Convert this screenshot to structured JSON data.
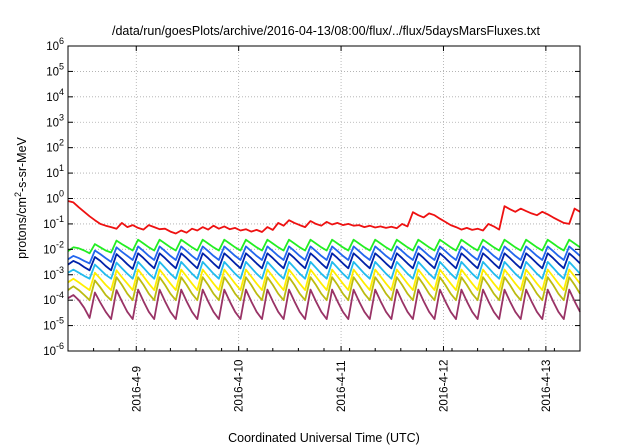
{
  "chart_data": {
    "type": "line",
    "title": "/data/run/goesPlots/archive/2016-04-13/08:00/flux/../flux/5daysMarsFluxes.txt",
    "xlabel": "Coordinated Universal Time (UTC)",
    "ylabel": "protons/cm²-s-sr-MeV",
    "y_scale": "log",
    "ylim": [
      1e-06,
      1000000.0
    ],
    "y_ticks": [
      {
        "value": 1e-06,
        "base": "10",
        "exp": "-6"
      },
      {
        "value": 1e-05,
        "base": "10",
        "exp": "-5"
      },
      {
        "value": 0.0001,
        "base": "10",
        "exp": "-4"
      },
      {
        "value": 0.001,
        "base": "10",
        "exp": "-3"
      },
      {
        "value": 0.01,
        "base": "10",
        "exp": "-2"
      },
      {
        "value": 0.1,
        "base": "10",
        "exp": "-1"
      },
      {
        "value": 1,
        "base": "10",
        "exp": "0"
      },
      {
        "value": 10,
        "base": "10",
        "exp": "1"
      },
      {
        "value": 100,
        "base": "10",
        "exp": "2"
      },
      {
        "value": 1000,
        "base": "10",
        "exp": "3"
      },
      {
        "value": 10000,
        "base": "10",
        "exp": "4"
      },
      {
        "value": 100000,
        "base": "10",
        "exp": "5"
      },
      {
        "value": 1000000,
        "base": "10",
        "exp": "6"
      }
    ],
    "xlim": [
      "2016-04-08T08:00",
      "2016-04-13T08:00"
    ],
    "x_ticks": [
      "2016-4-9",
      "2016-4-10",
      "2016-4-11",
      "2016-4-12",
      "2016-4-13"
    ],
    "grid": true,
    "series": [
      {
        "color": "#ee1111",
        "values": [
          0.8,
          0.7,
          0.45,
          0.3,
          0.2,
          0.14,
          0.1,
          0.085,
          0.075,
          0.065,
          0.11,
          0.075,
          0.09,
          0.07,
          0.06,
          0.09,
          0.075,
          0.062,
          0.065,
          0.05,
          0.042,
          0.055,
          0.045,
          0.065,
          0.055,
          0.075,
          0.06,
          0.085,
          0.065,
          0.08,
          0.062,
          0.07,
          0.055,
          0.062,
          0.05,
          0.058,
          0.048,
          0.075,
          0.058,
          0.11,
          0.085,
          0.14,
          0.11,
          0.09,
          0.075,
          0.13,
          0.1,
          0.085,
          0.12,
          0.095,
          0.11,
          0.09,
          0.1,
          0.085,
          0.09,
          0.075,
          0.085,
          0.072,
          0.08,
          0.07,
          0.078,
          0.068,
          0.1,
          0.08,
          0.29,
          0.22,
          0.18,
          0.26,
          0.22,
          0.16,
          0.12,
          0.09,
          0.075,
          0.06,
          0.07,
          0.058,
          0.065,
          0.055,
          0.1,
          0.08,
          0.06,
          0.5,
          0.38,
          0.3,
          0.4,
          0.32,
          0.26,
          0.22,
          0.3,
          0.24,
          0.18,
          0.14,
          0.11,
          0.1,
          0.4,
          0.3
        ]
      },
      {
        "color": "#22ee22",
        "values": [
          0.0085,
          0.012,
          0.011,
          0.009,
          0.007,
          0.016,
          0.012,
          0.009,
          0.0075,
          0.022,
          0.016,
          0.012,
          0.009,
          0.024,
          0.017,
          0.012,
          0.009,
          0.024,
          0.017,
          0.012,
          0.009,
          0.024,
          0.017,
          0.012,
          0.009,
          0.024,
          0.017,
          0.012,
          0.009,
          0.024,
          0.017,
          0.012,
          0.009,
          0.024,
          0.017,
          0.012,
          0.009,
          0.024,
          0.017,
          0.012,
          0.009,
          0.024,
          0.017,
          0.012,
          0.009,
          0.024,
          0.017,
          0.012,
          0.009,
          0.024,
          0.017,
          0.012,
          0.009,
          0.024,
          0.017,
          0.012,
          0.009,
          0.024,
          0.017,
          0.012,
          0.009,
          0.024,
          0.017,
          0.012,
          0.009,
          0.024,
          0.017,
          0.012,
          0.009,
          0.024,
          0.017,
          0.012,
          0.009,
          0.024,
          0.017,
          0.012,
          0.009,
          0.024,
          0.017,
          0.012,
          0.009,
          0.024,
          0.017,
          0.012,
          0.009,
          0.024,
          0.017,
          0.012,
          0.009,
          0.024,
          0.017,
          0.012,
          0.009,
          0.024,
          0.017,
          0.012
        ]
      },
      {
        "color": "#2266ee",
        "values": [
          0.004,
          0.0055,
          0.0045,
          0.0035,
          0.0028,
          0.009,
          0.0065,
          0.0045,
          0.0032,
          0.012,
          0.008,
          0.0055,
          0.0038,
          0.013,
          0.0085,
          0.0055,
          0.0038,
          0.013,
          0.0085,
          0.0055,
          0.0038,
          0.013,
          0.0085,
          0.0055,
          0.0038,
          0.013,
          0.0085,
          0.0055,
          0.0038,
          0.013,
          0.0085,
          0.0055,
          0.0038,
          0.013,
          0.0085,
          0.0055,
          0.0038,
          0.013,
          0.0085,
          0.0055,
          0.0038,
          0.013,
          0.0085,
          0.0055,
          0.0038,
          0.013,
          0.0085,
          0.0055,
          0.0038,
          0.013,
          0.0085,
          0.0055,
          0.0038,
          0.013,
          0.0085,
          0.0055,
          0.0038,
          0.013,
          0.0085,
          0.0055,
          0.0038,
          0.013,
          0.0085,
          0.0055,
          0.0038,
          0.013,
          0.0085,
          0.0055,
          0.0038,
          0.013,
          0.0085,
          0.0055,
          0.0038,
          0.013,
          0.0085,
          0.0055,
          0.0038,
          0.013,
          0.0085,
          0.0055,
          0.0038,
          0.013,
          0.0085,
          0.0055,
          0.0038,
          0.013,
          0.0085,
          0.0055,
          0.0038,
          0.013,
          0.0085,
          0.0055,
          0.0038,
          0.013,
          0.0085,
          0.0055
        ]
      },
      {
        "color": "#0022aa",
        "values": [
          0.0025,
          0.0035,
          0.0028,
          0.002,
          0.0015,
          0.005,
          0.0035,
          0.0022,
          0.0015,
          0.0065,
          0.0042,
          0.0026,
          0.0017,
          0.007,
          0.0045,
          0.0028,
          0.0018,
          0.007,
          0.0045,
          0.0028,
          0.0018,
          0.007,
          0.0045,
          0.0028,
          0.0018,
          0.007,
          0.0045,
          0.0028,
          0.0018,
          0.007,
          0.0045,
          0.0028,
          0.0018,
          0.007,
          0.0045,
          0.0028,
          0.0018,
          0.007,
          0.0045,
          0.0028,
          0.0018,
          0.007,
          0.0045,
          0.0028,
          0.0018,
          0.007,
          0.0045,
          0.0028,
          0.0018,
          0.007,
          0.0045,
          0.0028,
          0.0018,
          0.007,
          0.0045,
          0.0028,
          0.0018,
          0.007,
          0.0045,
          0.0028,
          0.0018,
          0.007,
          0.0045,
          0.0028,
          0.0018,
          0.007,
          0.0045,
          0.0028,
          0.0018,
          0.007,
          0.0045,
          0.0028,
          0.0018,
          0.007,
          0.0045,
          0.0028,
          0.0018,
          0.007,
          0.0045,
          0.0028,
          0.0018,
          0.007,
          0.0045,
          0.0028,
          0.0018,
          0.007,
          0.0045,
          0.0028,
          0.0018,
          0.007,
          0.0045,
          0.0028,
          0.0018,
          0.007,
          0.0045,
          0.0028
        ]
      },
      {
        "color": "#22bbee",
        "values": [
          0.0012,
          0.0016,
          0.0012,
          0.0009,
          0.0007,
          0.0025,
          0.0016,
          0.001,
          0.0007,
          0.003,
          0.0018,
          0.0011,
          0.0007,
          0.0032,
          0.0019,
          0.0011,
          0.0007,
          0.0032,
          0.0019,
          0.0011,
          0.0007,
          0.0032,
          0.0019,
          0.0011,
          0.0007,
          0.0032,
          0.0019,
          0.0011,
          0.0007,
          0.0032,
          0.0019,
          0.0011,
          0.0007,
          0.0032,
          0.0019,
          0.0011,
          0.0007,
          0.0032,
          0.0019,
          0.0011,
          0.0007,
          0.0032,
          0.0019,
          0.0011,
          0.0007,
          0.0032,
          0.0019,
          0.0011,
          0.0007,
          0.0032,
          0.0019,
          0.0011,
          0.0007,
          0.0032,
          0.0019,
          0.0011,
          0.0007,
          0.0032,
          0.0019,
          0.0011,
          0.0007,
          0.0032,
          0.0019,
          0.0011,
          0.0007,
          0.0032,
          0.0019,
          0.0011,
          0.0007,
          0.0032,
          0.0019,
          0.0011,
          0.0007,
          0.0032,
          0.0019,
          0.0011,
          0.0007,
          0.0032,
          0.0019,
          0.0011,
          0.0007,
          0.0032,
          0.0019,
          0.0011,
          0.0007,
          0.0032,
          0.0019,
          0.0011,
          0.0007,
          0.0032,
          0.0019,
          0.0011,
          0.0007,
          0.0032,
          0.0019,
          0.0011
        ]
      },
      {
        "color": "#ffee00",
        "values": [
          0.0005,
          0.0007,
          0.0005,
          0.00035,
          0.00025,
          0.0012,
          0.0007,
          0.0004,
          0.00025,
          0.0015,
          0.0008,
          0.00045,
          0.00025,
          0.0016,
          0.00085,
          0.00045,
          0.00025,
          0.0016,
          0.00085,
          0.00045,
          0.00025,
          0.0016,
          0.00085,
          0.00045,
          0.00025,
          0.0016,
          0.00085,
          0.00045,
          0.00025,
          0.0016,
          0.00085,
          0.00045,
          0.00025,
          0.0016,
          0.00085,
          0.00045,
          0.00025,
          0.0016,
          0.00085,
          0.00045,
          0.00025,
          0.0016,
          0.00085,
          0.00045,
          0.00025,
          0.0016,
          0.00085,
          0.00045,
          0.00025,
          0.0016,
          0.00085,
          0.00045,
          0.00025,
          0.0016,
          0.00085,
          0.00045,
          0.00025,
          0.0016,
          0.00085,
          0.00045,
          0.00025,
          0.0016,
          0.00085,
          0.00045,
          0.00025,
          0.0016,
          0.00085,
          0.00045,
          0.00025,
          0.0016,
          0.00085,
          0.00045,
          0.00025,
          0.0016,
          0.00085,
          0.00045,
          0.00025,
          0.0016,
          0.00085,
          0.00045,
          0.00025,
          0.0016,
          0.00085,
          0.00045,
          0.00025,
          0.0016,
          0.00085,
          0.00045,
          0.00025,
          0.0016,
          0.00085,
          0.00045,
          0.00025,
          0.0016,
          0.00085,
          0.00045
        ]
      },
      {
        "color": "#bbbb11",
        "values": [
          0.00025,
          0.00035,
          0.00025,
          0.00016,
          0.0001,
          0.0006,
          0.00032,
          0.00016,
          0.0001,
          0.0008,
          0.0004,
          0.00018,
          0.0001,
          0.0008,
          0.0004,
          0.00018,
          0.0001,
          0.0008,
          0.0004,
          0.00018,
          0.0001,
          0.0008,
          0.0004,
          0.00018,
          0.0001,
          0.0008,
          0.0004,
          0.00018,
          0.0001,
          0.0008,
          0.0004,
          0.00018,
          0.0001,
          0.0008,
          0.0004,
          0.00018,
          0.0001,
          0.0008,
          0.0004,
          0.00018,
          0.0001,
          0.0008,
          0.0004,
          0.00018,
          0.0001,
          0.0008,
          0.0004,
          0.00018,
          0.0001,
          0.0008,
          0.0004,
          0.00018,
          0.0001,
          0.0008,
          0.0004,
          0.00018,
          0.0001,
          0.0008,
          0.0004,
          0.00018,
          0.0001,
          0.0008,
          0.0004,
          0.00018,
          0.0001,
          0.0008,
          0.0004,
          0.00018,
          0.0001,
          0.0008,
          0.0004,
          0.00018,
          0.0001,
          0.0008,
          0.0004,
          0.00018,
          0.0001,
          0.0008,
          0.0004,
          0.00018,
          0.0001,
          0.0008,
          0.0004,
          0.00018,
          0.0001,
          0.0008,
          0.0004,
          0.00018,
          0.0001,
          0.0008,
          0.0004,
          0.00018,
          0.0001,
          0.0008,
          0.0004,
          0.00018
        ]
      },
      {
        "color": "#993366",
        "values": [
          0.00012,
          0.00016,
          0.0001,
          5e-05,
          2e-05,
          0.0002,
          8e-05,
          3.5e-05,
          1.8e-05,
          0.00025,
          9e-05,
          3.5e-05,
          1.8e-05,
          0.00026,
          9e-05,
          3.5e-05,
          1.8e-05,
          0.00026,
          9e-05,
          3.5e-05,
          1.8e-05,
          0.00026,
          9e-05,
          3.5e-05,
          1.8e-05,
          0.00026,
          9e-05,
          3.5e-05,
          1.8e-05,
          0.00026,
          9e-05,
          3.5e-05,
          1.8e-05,
          0.00026,
          9e-05,
          3.5e-05,
          1.8e-05,
          0.00026,
          9e-05,
          3.5e-05,
          1.8e-05,
          0.00026,
          9e-05,
          3.5e-05,
          1.8e-05,
          0.00026,
          9e-05,
          3.5e-05,
          1.8e-05,
          0.00026,
          9e-05,
          3.5e-05,
          1.8e-05,
          0.00026,
          9e-05,
          3.5e-05,
          1.8e-05,
          0.00026,
          9e-05,
          3.5e-05,
          1.8e-05,
          0.00026,
          9e-05,
          3.5e-05,
          1.8e-05,
          0.00026,
          9e-05,
          3.5e-05,
          1.8e-05,
          0.00026,
          9e-05,
          3.5e-05,
          1.8e-05,
          0.00026,
          9e-05,
          3.5e-05,
          1.8e-05,
          0.00026,
          9e-05,
          3.5e-05,
          1.8e-05,
          0.00026,
          9e-05,
          3.5e-05,
          1.8e-05,
          0.00026,
          9e-05,
          3.5e-05,
          1.8e-05,
          0.00026,
          9e-05,
          3.5e-05,
          1.8e-05,
          0.00026,
          9e-05,
          3.5e-05
        ]
      }
    ]
  }
}
